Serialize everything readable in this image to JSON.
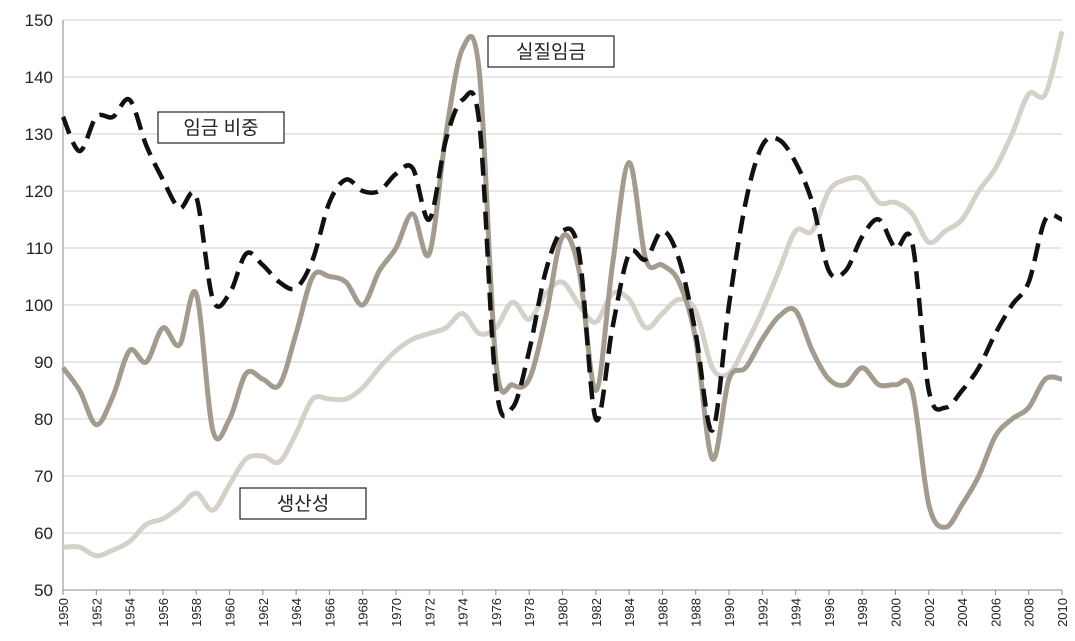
{
  "chart_data": {
    "type": "line",
    "x": [
      1950,
      1951,
      1952,
      1953,
      1954,
      1955,
      1956,
      1957,
      1958,
      1959,
      1960,
      1961,
      1962,
      1963,
      1964,
      1965,
      1966,
      1967,
      1968,
      1969,
      1970,
      1971,
      1972,
      1973,
      1974,
      1975,
      1976,
      1977,
      1978,
      1979,
      1980,
      1981,
      1982,
      1983,
      1984,
      1985,
      1986,
      1987,
      1988,
      1989,
      1990,
      1991,
      1992,
      1993,
      1994,
      1995,
      1996,
      1997,
      1998,
      1999,
      2000,
      2001,
      2002,
      2003,
      2004,
      2005,
      2006,
      2007,
      2008,
      2009,
      2010
    ],
    "xlim": [
      1950,
      2010
    ],
    "xticks": [
      1950,
      1952,
      1954,
      1956,
      1958,
      1960,
      1962,
      1964,
      1966,
      1968,
      1970,
      1972,
      1974,
      1976,
      1978,
      1980,
      1982,
      1984,
      1986,
      1988,
      1990,
      1992,
      1994,
      1996,
      1998,
      2000,
      2002,
      2004,
      2006,
      2008,
      2010
    ],
    "ylim": [
      50,
      150
    ],
    "yticks": [
      50,
      60,
      70,
      80,
      90,
      100,
      110,
      120,
      130,
      140,
      150
    ],
    "grid": true,
    "series": [
      {
        "name": "임금 비중",
        "color": "#111111",
        "dashed": true,
        "values": [
          133,
          127,
          133,
          133,
          136,
          128,
          122,
          117,
          119,
          101,
          102,
          109,
          107,
          104,
          103,
          108,
          118,
          122,
          120,
          120,
          123,
          124,
          115,
          129,
          136,
          132,
          86,
          82,
          92,
          106,
          113,
          109,
          80,
          96,
          109,
          108,
          113,
          108,
          95,
          78,
          100,
          118,
          128,
          129,
          125,
          118,
          106,
          106,
          112,
          115,
          110,
          111,
          85,
          82,
          85,
          89,
          95,
          100,
          104,
          115,
          115
        ]
      },
      {
        "name": "실질임금",
        "color": "#a39c8e",
        "dashed": false,
        "values": [
          89,
          85,
          79,
          84,
          92,
          90,
          96,
          93,
          102,
          78,
          80,
          88,
          87,
          86,
          95,
          105,
          105,
          104,
          100,
          106,
          110,
          116,
          109,
          130,
          145,
          141,
          90,
          86,
          87,
          98,
          112,
          106,
          85,
          107,
          125,
          108,
          107,
          104,
          94,
          73,
          87,
          89,
          94,
          98,
          99,
          92,
          87,
          86,
          89,
          86,
          86,
          85,
          65,
          61,
          65,
          70,
          77,
          80,
          82,
          87,
          87
        ]
      },
      {
        "name": "생산성",
        "color": "#d5d1c9",
        "dashed": false,
        "values": [
          57.5,
          57.5,
          56,
          57,
          58.5,
          61.5,
          62.5,
          64.5,
          67,
          64,
          68.5,
          73,
          73.5,
          72.5,
          77.5,
          83.5,
          83.5,
          83.5,
          85.5,
          89,
          92,
          94,
          95,
          96,
          98.5,
          95,
          96,
          100.5,
          97.5,
          102,
          104,
          100,
          97,
          102,
          101,
          96,
          98.5,
          101,
          99,
          89,
          88,
          93,
          99,
          106,
          113,
          113,
          120,
          122,
          122,
          118,
          118,
          116,
          111,
          113,
          115,
          120,
          124,
          130,
          137,
          137,
          148
        ]
      }
    ]
  }
}
